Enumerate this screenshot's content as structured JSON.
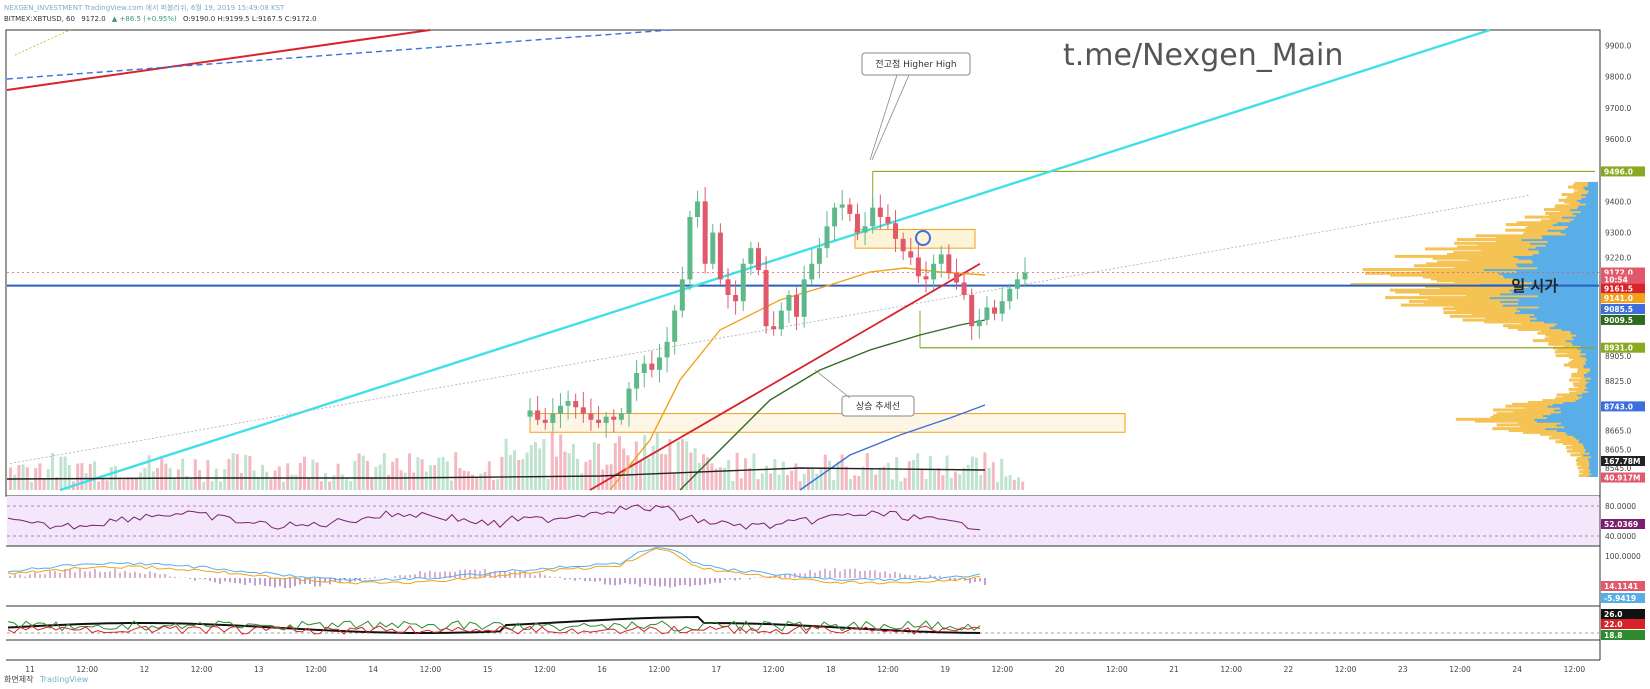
{
  "header": {
    "line1": "NEXGEN_INVESTMENT TradingView.com 에서 퍼블리쉬, 6월 19, 2019 15:49:08 KST",
    "symbol": "BITMEX:XBTUSD, 60",
    "last": "9172.0",
    "change": "▲ +86.5 (+0.95%)",
    "ohlc": "O:9190.0 H:9199.5 L:9167.5 C:9172.0"
  },
  "watermark": "t.me/Nexgen_Main",
  "footer": {
    "label": "화면제작",
    "brand": "TradingView"
  },
  "annotations": {
    "higher_high": "전고점 Higher High",
    "uptrend": "상승 추세선",
    "daily_open": "일 시가"
  },
  "colors": {
    "up": "#5fb88a",
    "down": "#e2586b",
    "cyan": "#3fe0e6",
    "red_trend": "#d8232a",
    "orange_ma": "#f0a21a",
    "green_ma": "#2e6b1f",
    "blue_ma": "#3c6fdd",
    "olive": "#8aa820",
    "daily_open_line": "#2a5fbf",
    "vp_orange": "#f5c254",
    "vp_blue": "#5aaee8",
    "rsi_bg": "#f4e6fb",
    "rsi_line": "#7b1e6e"
  },
  "chart_data": [
    {
      "type": "line",
      "panel": "price",
      "symbol": "BITMEX:XBTUSD",
      "interval": "60",
      "x_ticks": [
        "11",
        "12:00",
        "12",
        "12:00",
        "13",
        "12:00",
        "14",
        "12:00",
        "15",
        "12:00",
        "16",
        "12:00",
        "17",
        "12:00",
        "18",
        "12:00",
        "19",
        "12:00",
        "20",
        "12:00",
        "21",
        "12:00",
        "22",
        "12:00",
        "23",
        "12:00",
        "24",
        "12:00"
      ],
      "y_ticks": [
        9900.0,
        9800.0,
        9700.0,
        9600.0,
        9400.0,
        9300.0,
        9220.0,
        8905.0,
        8825.0,
        8665.0,
        8605.0,
        8545.0
      ],
      "ylim": [
        8475,
        9930
      ],
      "price_badges": [
        {
          "label": "9496.0",
          "value": 9496.0,
          "color": "#8aa820"
        },
        {
          "label": "9172.0",
          "value": 9172.0,
          "color": "#e2586b"
        },
        {
          "label": "10:54",
          "value": 9150.0,
          "color": "#e2586b"
        },
        {
          "label": "9161.5",
          "value": 9120.0,
          "color": "#d8232a"
        },
        {
          "label": "9141.0",
          "value": 9090.0,
          "color": "#f0a21a"
        },
        {
          "label": "9085.5",
          "value": 9055.0,
          "color": "#3c6fdd"
        },
        {
          "label": "9009.5",
          "value": 9020.0,
          "color": "#2e6b1f"
        },
        {
          "label": "8931.0",
          "value": 8931.0,
          "color": "#8aa820"
        },
        {
          "label": "8743.0",
          "value": 8743.0,
          "color": "#3c6fdd"
        },
        {
          "label": "167.78M",
          "value": 8568.0,
          "color": "#222222"
        },
        {
          "label": "40.917M",
          "value": 8515.0,
          "color": "#e2586b"
        }
      ],
      "levels": {
        "higher_high": 9496.0,
        "daily_open": 9130.0,
        "support": 8931.0,
        "resistance_box": [
          9250,
          9310
        ],
        "demand_box": [
          8660,
          8720
        ]
      },
      "close_series": [
        8730,
        8700,
        8690,
        8720,
        8745,
        8760,
        8740,
        8720,
        8700,
        8690,
        8710,
        8700,
        8720,
        8800,
        8850,
        8880,
        8860,
        8900,
        8950,
        9050,
        9150,
        9350,
        9400,
        9200,
        9300,
        9150,
        9100,
        9080,
        9200,
        9250,
        9180,
        9000,
        8990,
        9050,
        9100,
        9030,
        9150,
        9200,
        9250,
        9320,
        9380,
        9390,
        9360,
        9300,
        9320,
        9380,
        9350,
        9330,
        9280,
        9240,
        9220,
        9160,
        9150,
        9200,
        9230,
        9170,
        9140,
        9100,
        9000,
        9020,
        9060,
        9040,
        9080,
        9120,
        9150,
        9172
      ]
    },
    {
      "type": "line",
      "panel": "rsi",
      "y_ticks": [
        80.0,
        40.0
      ],
      "badges": [
        {
          "label": "52.0369",
          "color": "#7b1e6e"
        }
      ]
    },
    {
      "type": "line",
      "panel": "macd",
      "y_ticks": [
        100.0
      ],
      "badges": [
        {
          "label": "14.1141",
          "color": "#e2586b"
        },
        {
          "label": "-5.9419",
          "color": "#5aaee8"
        }
      ]
    },
    {
      "type": "line",
      "panel": "dmi",
      "badges": [
        {
          "label": "26.0",
          "color": "#111111"
        },
        {
          "label": "22.0",
          "color": "#d8232a"
        },
        {
          "label": "18.8",
          "color": "#2e8a2e"
        }
      ]
    }
  ]
}
